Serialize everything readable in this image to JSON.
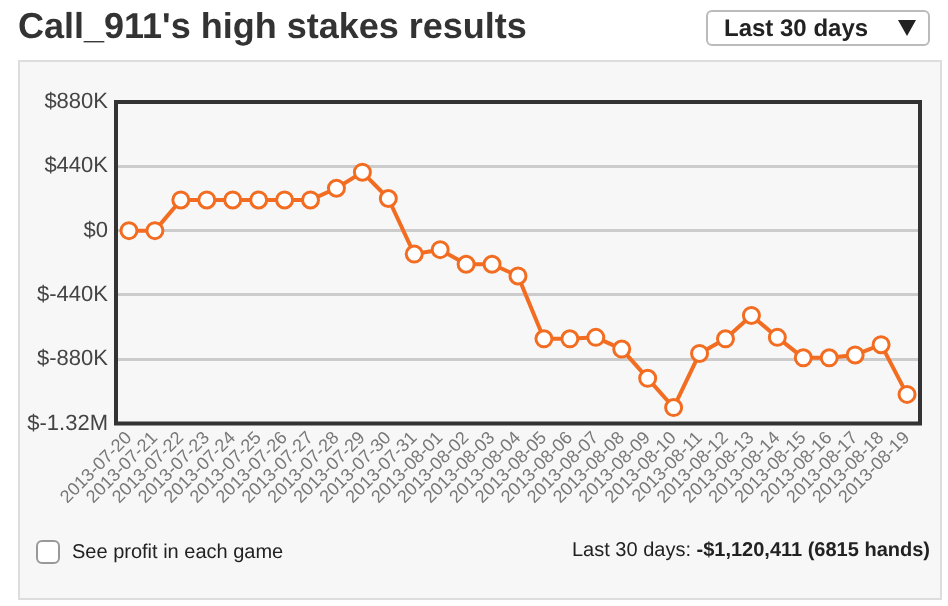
{
  "chart_data": {
    "type": "line",
    "title": "Call_911's high stakes results",
    "categories": [
      "2013-07-20",
      "2013-07-21",
      "2013-07-22",
      "2013-07-23",
      "2013-07-24",
      "2013-07-25",
      "2013-07-26",
      "2013-07-27",
      "2013-07-28",
      "2013-07-29",
      "2013-07-30",
      "2013-07-31",
      "2013-08-01",
      "2013-08-02",
      "2013-08-03",
      "2013-08-04",
      "2013-08-05",
      "2013-08-06",
      "2013-08-07",
      "2013-08-08",
      "2013-08-09",
      "2013-08-10",
      "2013-08-11",
      "2013-08-12",
      "2013-08-13",
      "2013-08-14",
      "2013-08-15",
      "2013-08-16",
      "2013-08-17",
      "2013-08-18",
      "2013-08-19"
    ],
    "series": [
      {
        "color": "#f26d21",
        "values": [
          0,
          0,
          210000,
          210000,
          210000,
          210000,
          210000,
          210000,
          290000,
          400000,
          220000,
          -160000,
          -130000,
          -230000,
          -230000,
          -310000,
          -740000,
          -740000,
          -730000,
          -810000,
          -1010000,
          -1210000,
          -840000,
          -740000,
          -580000,
          -730000,
          -870000,
          -870000,
          -850000,
          -780000,
          -1120000
        ]
      }
    ],
    "ylim": [
      -1320000,
      880000
    ],
    "yticks": [
      {
        "value": -1320000,
        "label": "$-1.32M"
      },
      {
        "value": -880000,
        "label": "$-880K"
      },
      {
        "value": -440000,
        "label": "$-440K"
      },
      {
        "value": 0,
        "label": "$0"
      },
      {
        "value": 440000,
        "label": "$440K"
      },
      {
        "value": 880000,
        "label": "$880K"
      }
    ],
    "grid": "y",
    "legend": false,
    "marker": "circle",
    "line_style": "solid",
    "annotations": [
      "Last 30 days",
      "See profit in each game",
      "Last 30 days: -$1,120,411 (6815 hands)"
    ]
  }
}
